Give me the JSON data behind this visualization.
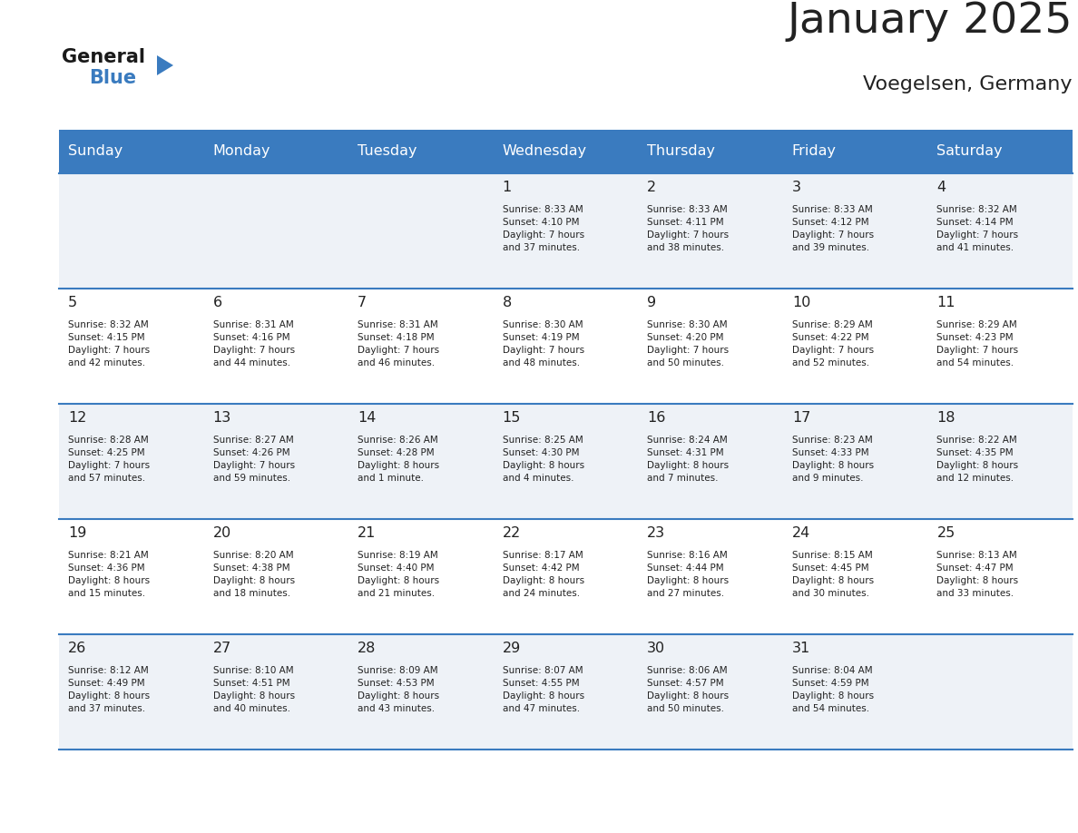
{
  "title": "January 2025",
  "subtitle": "Voegelsen, Germany",
  "header_bg": "#3a7bbf",
  "header_text": "#ffffff",
  "cell_bg_light": "#eef2f7",
  "cell_bg_white": "#ffffff",
  "row_line_color": "#3a7bbf",
  "text_color": "#222222",
  "days_of_week": [
    "Sunday",
    "Monday",
    "Tuesday",
    "Wednesday",
    "Thursday",
    "Friday",
    "Saturday"
  ],
  "weeks": [
    [
      {
        "day": "",
        "info": ""
      },
      {
        "day": "",
        "info": ""
      },
      {
        "day": "",
        "info": ""
      },
      {
        "day": "1",
        "info": "Sunrise: 8:33 AM\nSunset: 4:10 PM\nDaylight: 7 hours\nand 37 minutes."
      },
      {
        "day": "2",
        "info": "Sunrise: 8:33 AM\nSunset: 4:11 PM\nDaylight: 7 hours\nand 38 minutes."
      },
      {
        "day": "3",
        "info": "Sunrise: 8:33 AM\nSunset: 4:12 PM\nDaylight: 7 hours\nand 39 minutes."
      },
      {
        "day": "4",
        "info": "Sunrise: 8:32 AM\nSunset: 4:14 PM\nDaylight: 7 hours\nand 41 minutes."
      }
    ],
    [
      {
        "day": "5",
        "info": "Sunrise: 8:32 AM\nSunset: 4:15 PM\nDaylight: 7 hours\nand 42 minutes."
      },
      {
        "day": "6",
        "info": "Sunrise: 8:31 AM\nSunset: 4:16 PM\nDaylight: 7 hours\nand 44 minutes."
      },
      {
        "day": "7",
        "info": "Sunrise: 8:31 AM\nSunset: 4:18 PM\nDaylight: 7 hours\nand 46 minutes."
      },
      {
        "day": "8",
        "info": "Sunrise: 8:30 AM\nSunset: 4:19 PM\nDaylight: 7 hours\nand 48 minutes."
      },
      {
        "day": "9",
        "info": "Sunrise: 8:30 AM\nSunset: 4:20 PM\nDaylight: 7 hours\nand 50 minutes."
      },
      {
        "day": "10",
        "info": "Sunrise: 8:29 AM\nSunset: 4:22 PM\nDaylight: 7 hours\nand 52 minutes."
      },
      {
        "day": "11",
        "info": "Sunrise: 8:29 AM\nSunset: 4:23 PM\nDaylight: 7 hours\nand 54 minutes."
      }
    ],
    [
      {
        "day": "12",
        "info": "Sunrise: 8:28 AM\nSunset: 4:25 PM\nDaylight: 7 hours\nand 57 minutes."
      },
      {
        "day": "13",
        "info": "Sunrise: 8:27 AM\nSunset: 4:26 PM\nDaylight: 7 hours\nand 59 minutes."
      },
      {
        "day": "14",
        "info": "Sunrise: 8:26 AM\nSunset: 4:28 PM\nDaylight: 8 hours\nand 1 minute."
      },
      {
        "day": "15",
        "info": "Sunrise: 8:25 AM\nSunset: 4:30 PM\nDaylight: 8 hours\nand 4 minutes."
      },
      {
        "day": "16",
        "info": "Sunrise: 8:24 AM\nSunset: 4:31 PM\nDaylight: 8 hours\nand 7 minutes."
      },
      {
        "day": "17",
        "info": "Sunrise: 8:23 AM\nSunset: 4:33 PM\nDaylight: 8 hours\nand 9 minutes."
      },
      {
        "day": "18",
        "info": "Sunrise: 8:22 AM\nSunset: 4:35 PM\nDaylight: 8 hours\nand 12 minutes."
      }
    ],
    [
      {
        "day": "19",
        "info": "Sunrise: 8:21 AM\nSunset: 4:36 PM\nDaylight: 8 hours\nand 15 minutes."
      },
      {
        "day": "20",
        "info": "Sunrise: 8:20 AM\nSunset: 4:38 PM\nDaylight: 8 hours\nand 18 minutes."
      },
      {
        "day": "21",
        "info": "Sunrise: 8:19 AM\nSunset: 4:40 PM\nDaylight: 8 hours\nand 21 minutes."
      },
      {
        "day": "22",
        "info": "Sunrise: 8:17 AM\nSunset: 4:42 PM\nDaylight: 8 hours\nand 24 minutes."
      },
      {
        "day": "23",
        "info": "Sunrise: 8:16 AM\nSunset: 4:44 PM\nDaylight: 8 hours\nand 27 minutes."
      },
      {
        "day": "24",
        "info": "Sunrise: 8:15 AM\nSunset: 4:45 PM\nDaylight: 8 hours\nand 30 minutes."
      },
      {
        "day": "25",
        "info": "Sunrise: 8:13 AM\nSunset: 4:47 PM\nDaylight: 8 hours\nand 33 minutes."
      }
    ],
    [
      {
        "day": "26",
        "info": "Sunrise: 8:12 AM\nSunset: 4:49 PM\nDaylight: 8 hours\nand 37 minutes."
      },
      {
        "day": "27",
        "info": "Sunrise: 8:10 AM\nSunset: 4:51 PM\nDaylight: 8 hours\nand 40 minutes."
      },
      {
        "day": "28",
        "info": "Sunrise: 8:09 AM\nSunset: 4:53 PM\nDaylight: 8 hours\nand 43 minutes."
      },
      {
        "day": "29",
        "info": "Sunrise: 8:07 AM\nSunset: 4:55 PM\nDaylight: 8 hours\nand 47 minutes."
      },
      {
        "day": "30",
        "info": "Sunrise: 8:06 AM\nSunset: 4:57 PM\nDaylight: 8 hours\nand 50 minutes."
      },
      {
        "day": "31",
        "info": "Sunrise: 8:04 AM\nSunset: 4:59 PM\nDaylight: 8 hours\nand 54 minutes."
      },
      {
        "day": "",
        "info": ""
      }
    ]
  ]
}
